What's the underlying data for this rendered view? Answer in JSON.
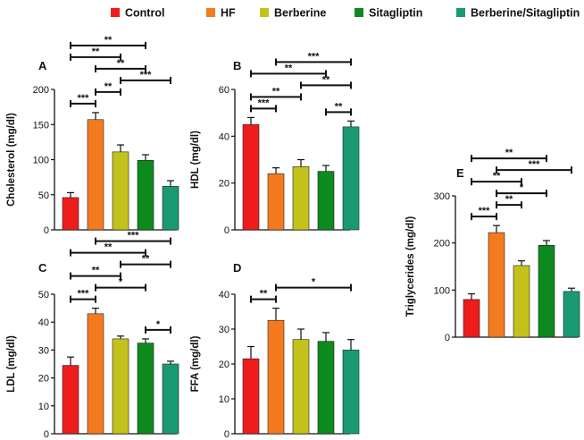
{
  "legend": [
    {
      "label": "Control",
      "color": "#ee1c1c"
    },
    {
      "label": "HF",
      "color": "#f47a20"
    },
    {
      "label": "Berberine",
      "color": "#c2c21b"
    },
    {
      "label": "Sitagliptin",
      "color": "#0d8a1e"
    },
    {
      "label": "Berberine/Sitagliptin",
      "color": "#1a9a72"
    }
  ],
  "chart_data": [
    {
      "type": "bar",
      "panel": "A",
      "ylabel": "Cholesterol (mg/dl)",
      "ylim": [
        0,
        200
      ],
      "yticks": [
        0,
        50,
        100,
        150,
        200
      ],
      "categories": [
        "Control",
        "HF",
        "Berberine",
        "Sitagliptin",
        "Berberine/Sitagliptin"
      ],
      "values": [
        46,
        157,
        111,
        99,
        62
      ],
      "errors": [
        7,
        10,
        10,
        8,
        8
      ],
      "significance": [
        {
          "from": 2,
          "to": 4,
          "label": "***"
        },
        {
          "from": 1,
          "to": 3,
          "label": "**"
        },
        {
          "from": 0,
          "to": 3,
          "label": "**"
        },
        {
          "from": 0,
          "to": 2,
          "label": "**"
        },
        {
          "from": 0,
          "to": 1,
          "label": "***"
        },
        {
          "from": 1,
          "to": 2,
          "label": "**"
        }
      ]
    },
    {
      "type": "bar",
      "panel": "B",
      "ylabel": "HDL (mg/dl)",
      "ylim": [
        0,
        60
      ],
      "yticks": [
        0,
        20,
        40,
        60
      ],
      "categories": [
        "Control",
        "HF",
        "Berberine",
        "Sitagliptin",
        "Berberine/Sitagliptin"
      ],
      "values": [
        45,
        24,
        27,
        25,
        44
      ],
      "errors": [
        3,
        2.5,
        3,
        2.5,
        2.5
      ],
      "significance": [
        {
          "from": 0,
          "to": 3,
          "label": "**"
        },
        {
          "from": 0,
          "to": 2,
          "label": "**"
        },
        {
          "from": 1,
          "to": 4,
          "label": "***"
        },
        {
          "from": 2,
          "to": 4,
          "label": "**"
        },
        {
          "from": 3,
          "to": 4,
          "label": "**"
        },
        {
          "from": 0,
          "to": 1,
          "label": "***"
        }
      ]
    },
    {
      "type": "bar",
      "panel": "C",
      "ylabel": "LDL (mg/dl)",
      "ylim": [
        0,
        50
      ],
      "yticks": [
        0,
        10,
        20,
        30,
        40,
        50
      ],
      "categories": [
        "Control",
        "HF",
        "Berberine",
        "Sitagliptin",
        "Berberine/Sitagliptin"
      ],
      "values": [
        24.5,
        43,
        34,
        32.5,
        25
      ],
      "errors": [
        3,
        2,
        1,
        1.5,
        1
      ],
      "significance": [
        {
          "from": 1,
          "to": 3,
          "label": "*"
        },
        {
          "from": 0,
          "to": 3,
          "label": "**"
        },
        {
          "from": 0,
          "to": 2,
          "label": "**"
        },
        {
          "from": 1,
          "to": 4,
          "label": "***"
        },
        {
          "from": 2,
          "to": 4,
          "label": "**"
        },
        {
          "from": 3,
          "to": 4,
          "label": "*"
        },
        {
          "from": 0,
          "to": 1,
          "label": "***"
        }
      ]
    },
    {
      "type": "bar",
      "panel": "D",
      "ylabel": "FFA (mg/dl)",
      "ylim": [
        0,
        40
      ],
      "yticks": [
        0,
        10,
        20,
        30,
        40
      ],
      "categories": [
        "Control",
        "HF",
        "Berberine",
        "Sitagliptin",
        "Berberine/Sitagliptin"
      ],
      "values": [
        21.5,
        32.5,
        27,
        26.5,
        24
      ],
      "errors": [
        3.5,
        3.5,
        3,
        2.5,
        3
      ],
      "significance": [
        {
          "from": 0,
          "to": 1,
          "label": "**"
        },
        {
          "from": 1,
          "to": 4,
          "label": "*"
        }
      ]
    },
    {
      "type": "bar",
      "panel": "E",
      "ylabel": "Triglycerides (mg/dl)",
      "ylim": [
        0,
        300
      ],
      "yticks": [
        0,
        100,
        200,
        300
      ],
      "categories": [
        "Control",
        "HF",
        "Berberine",
        "Sitagliptin",
        "Berberine/Sitagliptin"
      ],
      "values": [
        80,
        222,
        152,
        195,
        97
      ],
      "errors": [
        12,
        15,
        10,
        10,
        7
      ],
      "significance": [
        {
          "from": 1,
          "to": 4,
          "label": "***"
        },
        {
          "from": 1,
          "to": 3,
          "label": "*"
        },
        {
          "from": 0,
          "to": 3,
          "label": "**"
        },
        {
          "from": 0,
          "to": 2,
          "label": "**"
        },
        {
          "from": 0,
          "to": 1,
          "label": "***"
        },
        {
          "from": 1,
          "to": 2,
          "label": "**"
        }
      ]
    }
  ]
}
